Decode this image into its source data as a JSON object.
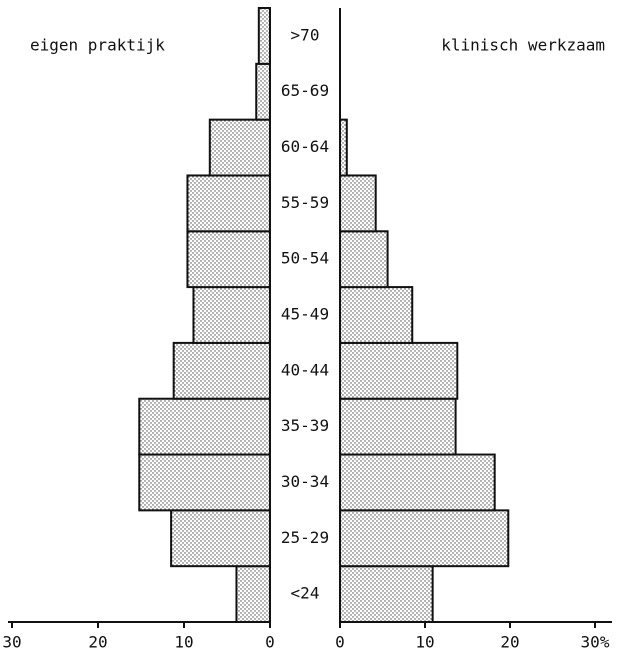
{
  "chart_data": {
    "type": "pyramid",
    "categories": [
      "<24",
      "25-29",
      "30-34",
      "35-39",
      "40-44",
      "45-49",
      "50-54",
      "55-59",
      "60-64",
      "65-69",
      ">70"
    ],
    "series": [
      {
        "name": "eigen praktijk",
        "color": "#111111",
        "side": "left",
        "values": [
          3.9,
          11.5,
          15.2,
          15.2,
          11.2,
          8.9,
          9.6,
          9.6,
          7.0,
          1.6,
          1.3
        ],
        "xlim": [
          0,
          30
        ],
        "xticks": [
          30,
          20,
          10,
          0
        ]
      },
      {
        "name": "klinisch werkzaam",
        "color": "#111111",
        "side": "right",
        "values": [
          10.9,
          19.8,
          18.2,
          13.6,
          13.8,
          8.5,
          5.6,
          4.2,
          0.8,
          0,
          0
        ],
        "xlim": [
          0,
          30
        ],
        "xticks": [
          0,
          10,
          20,
          {
            "value": 30,
            "label": "30%"
          }
        ]
      }
    ]
  }
}
